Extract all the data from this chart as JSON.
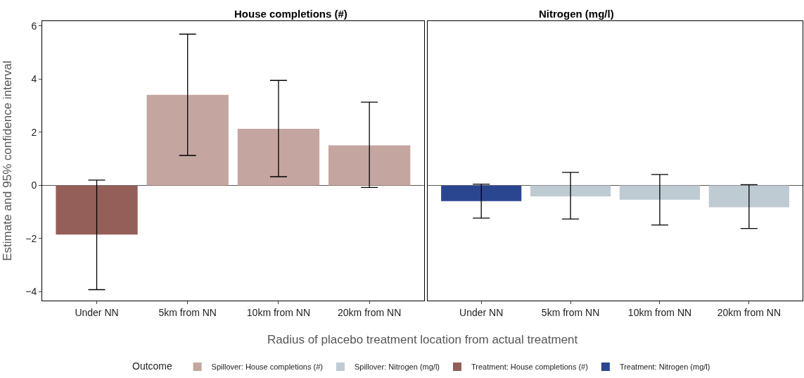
{
  "chart_data": [
    {
      "type": "bar",
      "title": "House completions (#)",
      "ylabel": "Estimate and 95% confidence interval",
      "xlabel": "Radius of placebo treatment location from actual treatment",
      "legend_title": "Outcome",
      "legend": "bottom",
      "grid": false,
      "categories": [
        "Under NN",
        "5km from NN",
        "10km from NN",
        "20km from NN"
      ],
      "ylim": [
        -4.33,
        6.18
      ],
      "yticks": [
        {
          "value": -4,
          "label": "−4"
        },
        {
          "value": -2,
          "label": "−2"
        },
        0,
        2,
        4,
        6
      ],
      "ref_lines": [
        {
          "axis": "y",
          "value": 0,
          "color": "#555555"
        }
      ],
      "series": [
        {
          "name": "Spillover: House completions (#)",
          "color": "#c4a59f",
          "values": [
            null,
            3.41,
            2.13,
            1.51
          ],
          "errors": [
            null,
            [
              1.13,
              5.69
            ],
            [
              0.33,
              3.95
            ],
            [
              -0.08,
              3.13
            ]
          ]
        },
        {
          "name": "Treatment: House completions (#)",
          "color": "#955f59",
          "values": [
            -1.85,
            null,
            null,
            null
          ],
          "errors": [
            [
              -3.92,
              0.2
            ],
            null,
            null,
            null
          ]
        }
      ]
    },
    {
      "type": "bar",
      "title": "Nitrogen (mg/l)",
      "legend": "bottom",
      "grid": false,
      "tick_labels": "x",
      "categories": [
        "Under NN",
        "5km from NN",
        "10km from NN",
        "20km from NN"
      ],
      "ylim": [
        -4.33,
        6.18
      ],
      "ref_lines": [
        {
          "axis": "y",
          "value": 0,
          "color": "#555555"
        }
      ],
      "series": [
        {
          "name": "Spillover: Nitrogen (mg/l)",
          "color": "#bfcbd3",
          "values": [
            null,
            -0.41,
            -0.54,
            -0.82
          ],
          "errors": [
            null,
            [
              -1.26,
              0.49
            ],
            [
              -1.49,
              0.41
            ],
            [
              -1.62,
              0.03
            ]
          ]
        },
        {
          "name": "Treatment: Nitrogen (mg/l)",
          "color": "#2b4690",
          "values": [
            -0.59,
            null,
            null,
            null
          ],
          "errors": [
            [
              -1.23,
              0.05
            ],
            null,
            null,
            null
          ]
        }
      ]
    }
  ]
}
